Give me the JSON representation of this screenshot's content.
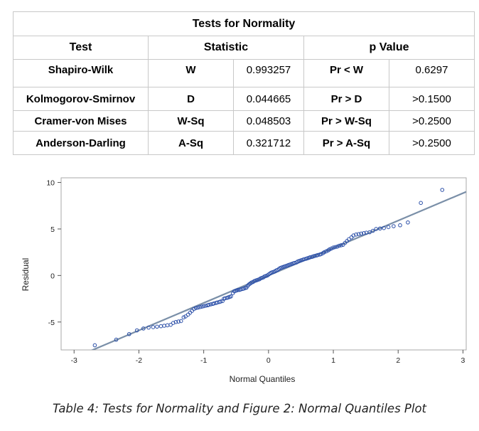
{
  "table": {
    "title": "Tests for Normality",
    "headers": {
      "test": "Test",
      "statistic": "Statistic",
      "pvalue": "p Value"
    },
    "rows": [
      {
        "test": "Shapiro-Wilk",
        "stat_name": "W",
        "stat_value": "0.993257",
        "p_name": "Pr < W",
        "p_value": "0.6297"
      },
      {
        "test": "Kolmogorov-Smirnov",
        "stat_name": "D",
        "stat_value": "0.044665",
        "p_name": "Pr > D",
        "p_value": ">0.1500"
      },
      {
        "test": "Cramer-von Mises",
        "stat_name": "W-Sq",
        "stat_value": "0.048503",
        "p_name": "Pr > W-Sq",
        "p_value": ">0.2500"
      },
      {
        "test": "Anderson-Darling",
        "stat_name": "A-Sq",
        "stat_value": "0.321712",
        "p_name": "Pr > A-Sq",
        "p_value": ">0.2500"
      }
    ]
  },
  "chart_data": {
    "type": "scatter",
    "xlabel": "Normal Quantiles",
    "ylabel": "Residual",
    "xlim": [
      -3.2,
      3.05
    ],
    "ylim": [
      -8.0,
      10.5
    ],
    "xticks": [
      -3,
      -2,
      -1,
      0,
      1,
      2,
      3
    ],
    "yticks": [
      -5,
      0,
      5,
      10
    ],
    "grid": false,
    "reference_line": {
      "intercept": 0.0,
      "slope": 2.95,
      "color": "#7a8fa8"
    },
    "marker_color": "#2b4fa8",
    "points": [
      [
        -2.68,
        -7.5
      ],
      [
        -2.35,
        -6.9
      ],
      [
        -2.15,
        -6.3
      ],
      [
        -2.03,
        -5.9
      ],
      [
        -1.93,
        -5.7
      ],
      [
        -1.85,
        -5.6
      ],
      [
        -1.78,
        -5.55
      ],
      [
        -1.72,
        -5.5
      ],
      [
        -1.66,
        -5.45
      ],
      [
        -1.61,
        -5.4
      ],
      [
        -1.56,
        -5.35
      ],
      [
        -1.51,
        -5.3
      ],
      [
        -1.47,
        -5.1
      ],
      [
        -1.43,
        -5.0
      ],
      [
        -1.39,
        -4.95
      ],
      [
        -1.35,
        -4.9
      ],
      [
        -1.31,
        -4.5
      ],
      [
        -1.28,
        -4.4
      ],
      [
        -1.24,
        -4.2
      ],
      [
        -1.21,
        -4.0
      ],
      [
        -1.18,
        -3.8
      ],
      [
        -1.15,
        -3.6
      ],
      [
        -1.12,
        -3.5
      ],
      [
        -1.09,
        -3.45
      ],
      [
        -1.06,
        -3.4
      ],
      [
        -1.03,
        -3.35
      ],
      [
        -1.0,
        -3.3
      ],
      [
        -0.97,
        -3.25
      ],
      [
        -0.94,
        -3.2
      ],
      [
        -0.92,
        -3.15
      ],
      [
        -0.89,
        -3.1
      ],
      [
        -0.86,
        -3.05
      ],
      [
        -0.84,
        -3.0
      ],
      [
        -0.81,
        -2.95
      ],
      [
        -0.79,
        -2.9
      ],
      [
        -0.76,
        -2.85
      ],
      [
        -0.74,
        -2.8
      ],
      [
        -0.71,
        -2.75
      ],
      [
        -0.69,
        -2.5
      ],
      [
        -0.67,
        -2.45
      ],
      [
        -0.64,
        -2.4
      ],
      [
        -0.62,
        -2.35
      ],
      [
        -0.6,
        -2.3
      ],
      [
        -0.58,
        -2.25
      ],
      [
        -0.55,
        -1.9
      ],
      [
        -0.53,
        -1.7
      ],
      [
        -0.51,
        -1.65
      ],
      [
        -0.49,
        -1.6
      ],
      [
        -0.47,
        -1.55
      ],
      [
        -0.45,
        -1.55
      ],
      [
        -0.43,
        -1.5
      ],
      [
        -0.4,
        -1.45
      ],
      [
        -0.38,
        -1.4
      ],
      [
        -0.36,
        -1.35
      ],
      [
        -0.34,
        -1.3
      ],
      [
        -0.32,
        -1.1
      ],
      [
        -0.3,
        -0.95
      ],
      [
        -0.28,
        -0.85
      ],
      [
        -0.26,
        -0.75
      ],
      [
        -0.24,
        -0.7
      ],
      [
        -0.22,
        -0.6
      ],
      [
        -0.2,
        -0.55
      ],
      [
        -0.18,
        -0.5
      ],
      [
        -0.16,
        -0.45
      ],
      [
        -0.14,
        -0.4
      ],
      [
        -0.12,
        -0.3
      ],
      [
        -0.1,
        -0.25
      ],
      [
        -0.08,
        -0.2
      ],
      [
        -0.06,
        -0.1
      ],
      [
        -0.04,
        -0.05
      ],
      [
        -0.02,
        0.0
      ],
      [
        0.0,
        0.1
      ],
      [
        0.02,
        0.2
      ],
      [
        0.04,
        0.3
      ],
      [
        0.06,
        0.35
      ],
      [
        0.08,
        0.4
      ],
      [
        0.1,
        0.45
      ],
      [
        0.12,
        0.55
      ],
      [
        0.14,
        0.6
      ],
      [
        0.16,
        0.7
      ],
      [
        0.18,
        0.8
      ],
      [
        0.2,
        0.85
      ],
      [
        0.22,
        0.9
      ],
      [
        0.24,
        0.95
      ],
      [
        0.26,
        1.0
      ],
      [
        0.28,
        1.05
      ],
      [
        0.3,
        1.1
      ],
      [
        0.32,
        1.15
      ],
      [
        0.34,
        1.2
      ],
      [
        0.36,
        1.25
      ],
      [
        0.38,
        1.3
      ],
      [
        0.4,
        1.35
      ],
      [
        0.43,
        1.4
      ],
      [
        0.45,
        1.5
      ],
      [
        0.47,
        1.55
      ],
      [
        0.49,
        1.6
      ],
      [
        0.51,
        1.65
      ],
      [
        0.53,
        1.7
      ],
      [
        0.55,
        1.75
      ],
      [
        0.58,
        1.8
      ],
      [
        0.6,
        1.85
      ],
      [
        0.62,
        1.9
      ],
      [
        0.64,
        1.95
      ],
      [
        0.67,
        2.0
      ],
      [
        0.69,
        2.05
      ],
      [
        0.71,
        2.1
      ],
      [
        0.74,
        2.15
      ],
      [
        0.76,
        2.2
      ],
      [
        0.79,
        2.25
      ],
      [
        0.81,
        2.3
      ],
      [
        0.84,
        2.4
      ],
      [
        0.86,
        2.5
      ],
      [
        0.89,
        2.6
      ],
      [
        0.92,
        2.7
      ],
      [
        0.94,
        2.8
      ],
      [
        0.97,
        2.9
      ],
      [
        1.0,
        3.0
      ],
      [
        1.03,
        3.05
      ],
      [
        1.06,
        3.1
      ],
      [
        1.09,
        3.2
      ],
      [
        1.12,
        3.25
      ],
      [
        1.15,
        3.3
      ],
      [
        1.18,
        3.5
      ],
      [
        1.21,
        3.7
      ],
      [
        1.24,
        3.9
      ],
      [
        1.28,
        4.1
      ],
      [
        1.31,
        4.3
      ],
      [
        1.35,
        4.4
      ],
      [
        1.39,
        4.45
      ],
      [
        1.43,
        4.5
      ],
      [
        1.47,
        4.55
      ],
      [
        1.51,
        4.6
      ],
      [
        1.56,
        4.65
      ],
      [
        1.61,
        4.8
      ],
      [
        1.66,
        5.0
      ],
      [
        1.72,
        5.05
      ],
      [
        1.78,
        5.1
      ],
      [
        1.85,
        5.2
      ],
      [
        1.93,
        5.3
      ],
      [
        2.03,
        5.4
      ],
      [
        2.15,
        5.7
      ],
      [
        2.35,
        7.8
      ],
      [
        2.68,
        9.2
      ]
    ]
  },
  "caption": "Table 4: Tests for Normality and Figure 2: Normal Quantiles Plot"
}
